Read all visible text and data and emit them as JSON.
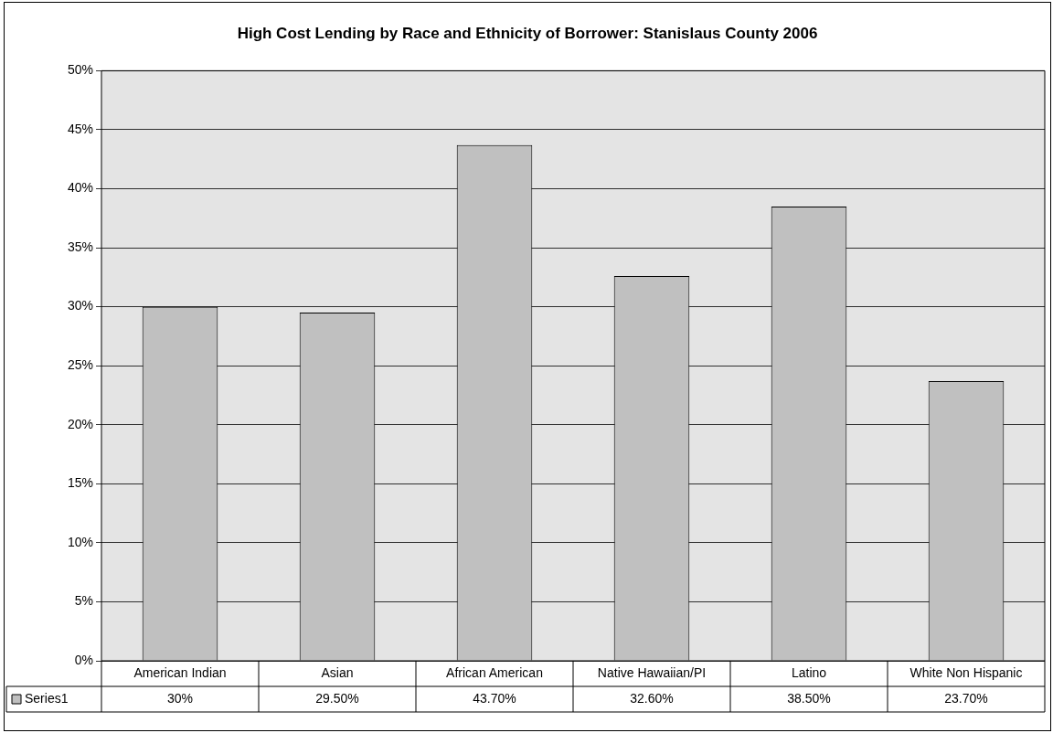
{
  "chart_data": {
    "type": "bar",
    "title": "High Cost Lending by Race and Ethnicity of Borrower: Stanislaus County 2006",
    "categories": [
      "American Indian",
      "Asian",
      "African American",
      "Native Hawaiian/PI",
      "Latino",
      "White Non Hispanic"
    ],
    "series": [
      {
        "name": "Series1",
        "color": "#c0c0c0",
        "values": [
          30,
          29.5,
          43.7,
          32.6,
          38.5,
          23.7
        ],
        "value_labels": [
          "30%",
          "29.50%",
          "43.70%",
          "32.60%",
          "38.50%",
          "23.70%"
        ]
      }
    ],
    "ylim": [
      0,
      50
    ],
    "yticks": [
      {
        "value": 0,
        "label": "0%"
      },
      {
        "value": 5,
        "label": "5%"
      },
      {
        "value": 10,
        "label": "10%"
      },
      {
        "value": 15,
        "label": "15%"
      },
      {
        "value": 20,
        "label": "20%"
      },
      {
        "value": 25,
        "label": "25%"
      },
      {
        "value": 30,
        "label": "30%"
      },
      {
        "value": 35,
        "label": "35%"
      },
      {
        "value": 40,
        "label": "40%"
      },
      {
        "value": 45,
        "label": "45%"
      },
      {
        "value": 50,
        "label": "50%"
      }
    ],
    "grid": "y",
    "legend": "bottom"
  }
}
